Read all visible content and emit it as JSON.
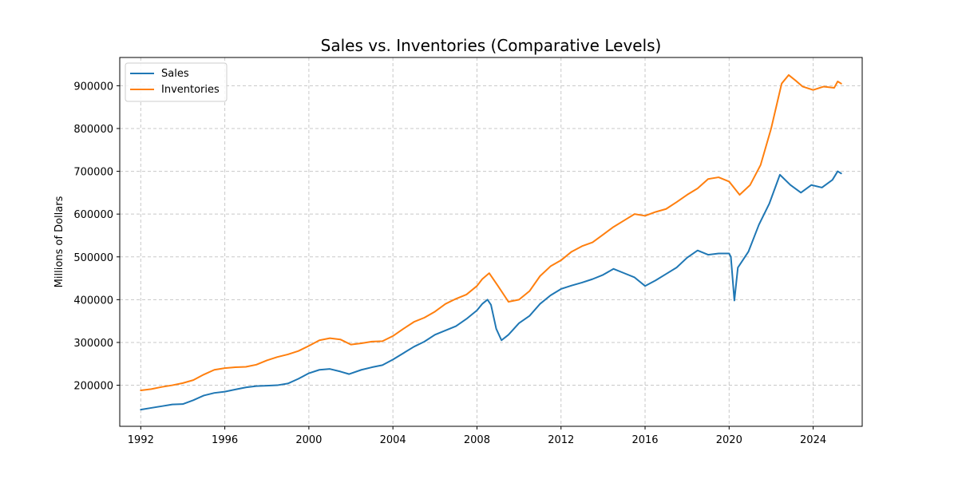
{
  "chart_data": {
    "type": "line",
    "title": "Sales vs. Inventories (Comparative Levels)",
    "xlabel": "",
    "ylabel": "Millions of Dollars",
    "xlim": [
      "1991-01-01",
      "2026-05-01"
    ],
    "ylim": [
      104000,
      966000
    ],
    "x_ticks": [
      "1992",
      "1996",
      "2000",
      "2004",
      "2008",
      "2012",
      "2016",
      "2020",
      "2024"
    ],
    "y_ticks": [
      200000,
      300000,
      400000,
      500000,
      600000,
      700000,
      800000,
      900000
    ],
    "grid": true,
    "legend_position": "top-left",
    "colors": {
      "Sales": "#1f77b4",
      "Inventories": "#ff7f0e"
    },
    "series": [
      {
        "name": "Sales",
        "points": [
          [
            "1992-01",
            143000
          ],
          [
            "1992-07",
            147000
          ],
          [
            "1993-01",
            151000
          ],
          [
            "1993-07",
            155000
          ],
          [
            "1994-01",
            156000
          ],
          [
            "1994-07",
            165000
          ],
          [
            "1995-01",
            176000
          ],
          [
            "1995-07",
            182000
          ],
          [
            "1996-01",
            185000
          ],
          [
            "1996-07",
            190000
          ],
          [
            "1997-01",
            195000
          ],
          [
            "1997-07",
            198000
          ],
          [
            "1998-01",
            199000
          ],
          [
            "1998-07",
            200000
          ],
          [
            "1999-01",
            204000
          ],
          [
            "1999-07",
            215000
          ],
          [
            "2000-01",
            228000
          ],
          [
            "2000-07",
            236000
          ],
          [
            "2001-01",
            238000
          ],
          [
            "2001-07",
            232000
          ],
          [
            "2001-12",
            226000
          ],
          [
            "2002-07",
            236000
          ],
          [
            "2003-01",
            242000
          ],
          [
            "2003-07",
            247000
          ],
          [
            "2004-01",
            260000
          ],
          [
            "2004-07",
            275000
          ],
          [
            "2005-01",
            290000
          ],
          [
            "2005-07",
            302000
          ],
          [
            "2006-01",
            318000
          ],
          [
            "2006-07",
            328000
          ],
          [
            "2007-01",
            338000
          ],
          [
            "2007-07",
            355000
          ],
          [
            "2008-01",
            375000
          ],
          [
            "2008-04",
            390000
          ],
          [
            "2008-07",
            400000
          ],
          [
            "2008-09",
            388000
          ],
          [
            "2008-12",
            332000
          ],
          [
            "2009-03",
            305000
          ],
          [
            "2009-07",
            318000
          ],
          [
            "2010-01",
            345000
          ],
          [
            "2010-07",
            362000
          ],
          [
            "2011-01",
            390000
          ],
          [
            "2011-07",
            410000
          ],
          [
            "2012-01",
            425000
          ],
          [
            "2012-07",
            433000
          ],
          [
            "2013-01",
            440000
          ],
          [
            "2013-07",
            448000
          ],
          [
            "2014-01",
            458000
          ],
          [
            "2014-07",
            472000
          ],
          [
            "2015-01",
            462000
          ],
          [
            "2015-07",
            452000
          ],
          [
            "2016-01",
            432000
          ],
          [
            "2016-07",
            445000
          ],
          [
            "2017-01",
            460000
          ],
          [
            "2017-07",
            475000
          ],
          [
            "2018-01",
            498000
          ],
          [
            "2018-07",
            515000
          ],
          [
            "2019-01",
            505000
          ],
          [
            "2019-07",
            508000
          ],
          [
            "2020-01",
            508000
          ],
          [
            "2020-02",
            500000
          ],
          [
            "2020-04",
            398000
          ],
          [
            "2020-06",
            475000
          ],
          [
            "2020-12",
            512000
          ],
          [
            "2021-06",
            575000
          ],
          [
            "2021-12",
            625000
          ],
          [
            "2022-06",
            692000
          ],
          [
            "2022-12",
            668000
          ],
          [
            "2023-06",
            650000
          ],
          [
            "2023-12",
            668000
          ],
          [
            "2024-06",
            662000
          ],
          [
            "2024-12",
            680000
          ],
          [
            "2025-03",
            700000
          ],
          [
            "2025-05",
            695000
          ]
        ]
      },
      {
        "name": "Inventories",
        "points": [
          [
            "1992-01",
            188000
          ],
          [
            "1992-07",
            191000
          ],
          [
            "1993-01",
            196000
          ],
          [
            "1993-07",
            200000
          ],
          [
            "1994-01",
            205000
          ],
          [
            "1994-07",
            212000
          ],
          [
            "1995-01",
            225000
          ],
          [
            "1995-07",
            236000
          ],
          [
            "1996-01",
            240000
          ],
          [
            "1996-07",
            242000
          ],
          [
            "1997-01",
            243000
          ],
          [
            "1997-07",
            248000
          ],
          [
            "1998-01",
            258000
          ],
          [
            "1998-07",
            266000
          ],
          [
            "1999-01",
            272000
          ],
          [
            "1999-07",
            280000
          ],
          [
            "2000-01",
            292000
          ],
          [
            "2000-07",
            305000
          ],
          [
            "2001-01",
            310000
          ],
          [
            "2001-07",
            307000
          ],
          [
            "2002-01",
            295000
          ],
          [
            "2002-07",
            298000
          ],
          [
            "2003-01",
            302000
          ],
          [
            "2003-07",
            303000
          ],
          [
            "2004-01",
            315000
          ],
          [
            "2004-07",
            332000
          ],
          [
            "2005-01",
            348000
          ],
          [
            "2005-07",
            358000
          ],
          [
            "2006-01",
            372000
          ],
          [
            "2006-07",
            390000
          ],
          [
            "2007-01",
            402000
          ],
          [
            "2007-07",
            412000
          ],
          [
            "2008-01",
            432000
          ],
          [
            "2008-04",
            448000
          ],
          [
            "2008-08",
            462000
          ],
          [
            "2009-01",
            432000
          ],
          [
            "2009-07",
            395000
          ],
          [
            "2010-01",
            400000
          ],
          [
            "2010-07",
            420000
          ],
          [
            "2011-01",
            455000
          ],
          [
            "2011-07",
            478000
          ],
          [
            "2012-01",
            492000
          ],
          [
            "2012-07",
            512000
          ],
          [
            "2013-01",
            525000
          ],
          [
            "2013-07",
            534000
          ],
          [
            "2014-01",
            552000
          ],
          [
            "2014-07",
            570000
          ],
          [
            "2015-01",
            585000
          ],
          [
            "2015-07",
            600000
          ],
          [
            "2016-01",
            596000
          ],
          [
            "2016-07",
            605000
          ],
          [
            "2017-01",
            612000
          ],
          [
            "2017-07",
            628000
          ],
          [
            "2018-01",
            645000
          ],
          [
            "2018-07",
            660000
          ],
          [
            "2019-01",
            682000
          ],
          [
            "2019-07",
            686000
          ],
          [
            "2020-01",
            676000
          ],
          [
            "2020-07",
            645000
          ],
          [
            "2021-01",
            668000
          ],
          [
            "2021-07",
            715000
          ],
          [
            "2022-01",
            800000
          ],
          [
            "2022-07",
            905000
          ],
          [
            "2022-11",
            925000
          ],
          [
            "2023-03",
            912000
          ],
          [
            "2023-07",
            898000
          ],
          [
            "2024-01",
            890000
          ],
          [
            "2024-07",
            898000
          ],
          [
            "2025-01",
            895000
          ],
          [
            "2025-03",
            910000
          ],
          [
            "2025-05",
            905000
          ]
        ]
      }
    ]
  }
}
